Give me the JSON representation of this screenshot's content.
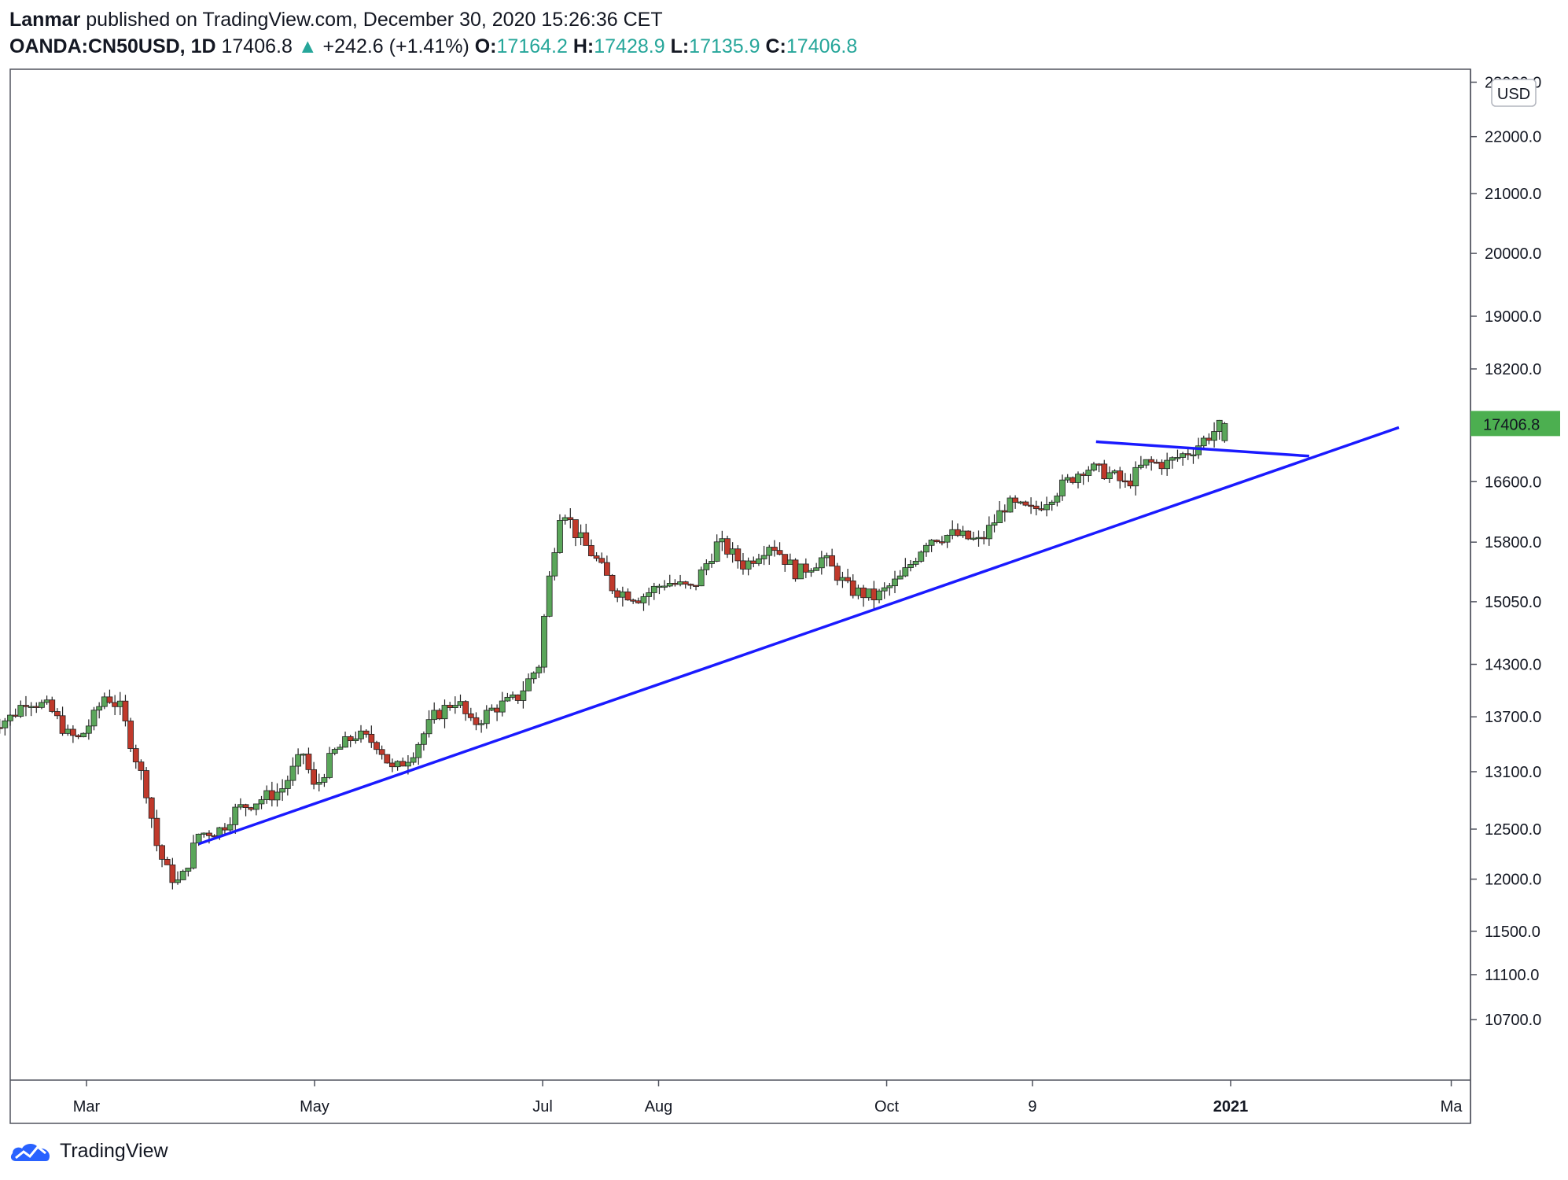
{
  "header": {
    "author": "Lanmar",
    "published_text": "published on TradingView.com, December 30, 2020 15:26:36 CET",
    "symbol": "OANDA:CN50USD, 1D",
    "last": "17406.8",
    "change": "+242.6 (+1.41%)",
    "o_label": "O:",
    "o_value": "17164.2",
    "h_label": "H:",
    "h_value": "17428.9",
    "l_label": "L:",
    "l_value": "17135.9",
    "c_label": "C:",
    "c_value": "17406.8"
  },
  "footer": {
    "brand": "TradingView"
  },
  "colors": {
    "up": "#26a69a",
    "candle_up": "#5aa65a",
    "candle_down": "#c0392b",
    "trendline": "#1a1aff",
    "price_tag": "#4caf50"
  },
  "chart_data": {
    "type": "candlestick",
    "currency": "USD",
    "y_ticks": [
      23000,
      22000,
      21000,
      20000,
      19000,
      18200,
      16600,
      15800,
      15050,
      14300,
      13700,
      13100,
      12500,
      12000,
      11500,
      11100,
      10700
    ],
    "y_tick_labels": [
      "23000.0",
      "22000.0",
      "21000.0",
      "20000.0",
      "19000.0",
      "18200.0",
      "16600.0",
      "15800.0",
      "15050.0",
      "14300.0",
      "13700.0",
      "13100.0",
      "12500.0",
      "12000.0",
      "11500.0",
      "11100.0",
      "10700.0"
    ],
    "last_price": 17406.8,
    "last_price_label": "17406.8",
    "x_labels": [
      "Mar",
      "May",
      "Jul",
      "Aug",
      "Oct",
      "9",
      "2021",
      "Ma"
    ],
    "x_label_dates": [
      "2020-03-01",
      "2020-05-01",
      "2020-07-01",
      "2020-08-01",
      "2020-10-01",
      "2020-11-09",
      "2021-01-01",
      "2021-03-01"
    ],
    "close_path": [
      [
        "2020-02-04",
        13600
      ],
      [
        "2020-02-10",
        13700
      ],
      [
        "2020-02-14",
        13900
      ],
      [
        "2020-02-20",
        13800
      ],
      [
        "2020-02-25",
        13500
      ],
      [
        "2020-02-28",
        13450
      ],
      [
        "2020-03-03",
        13700
      ],
      [
        "2020-03-06",
        13950
      ],
      [
        "2020-03-10",
        13800
      ],
      [
        "2020-03-13",
        13400
      ],
      [
        "2020-03-17",
        12900
      ],
      [
        "2020-03-20",
        12300
      ],
      [
        "2020-03-23",
        12050
      ],
      [
        "2020-03-26",
        11950
      ],
      [
        "2020-03-31",
        12450
      ],
      [
        "2020-04-06",
        12500
      ],
      [
        "2020-04-10",
        12700
      ],
      [
        "2020-04-16",
        12800
      ],
      [
        "2020-04-22",
        12900
      ],
      [
        "2020-04-28",
        13300
      ],
      [
        "2020-05-01",
        12900
      ],
      [
        "2020-05-06",
        13300
      ],
      [
        "2020-05-12",
        13500
      ],
      [
        "2020-05-18",
        13400
      ],
      [
        "2020-05-22",
        13100
      ],
      [
        "2020-05-27",
        13300
      ],
      [
        "2020-06-02",
        13700
      ],
      [
        "2020-06-08",
        13900
      ],
      [
        "2020-06-12",
        13600
      ],
      [
        "2020-06-18",
        13800
      ],
      [
        "2020-06-24",
        13900
      ],
      [
        "2020-06-30",
        14300
      ],
      [
        "2020-07-02",
        15100
      ],
      [
        "2020-07-06",
        16300
      ],
      [
        "2020-07-10",
        15900
      ],
      [
        "2020-07-15",
        15600
      ],
      [
        "2020-07-20",
        15200
      ],
      [
        "2020-07-27",
        15100
      ],
      [
        "2020-08-03",
        15300
      ],
      [
        "2020-08-10",
        15200
      ],
      [
        "2020-08-17",
        15800
      ],
      [
        "2020-08-24",
        15500
      ],
      [
        "2020-08-31",
        15800
      ],
      [
        "2020-09-07",
        15400
      ],
      [
        "2020-09-14",
        15600
      ],
      [
        "2020-09-21",
        15200
      ],
      [
        "2020-09-28",
        15100
      ],
      [
        "2020-10-05",
        15350
      ],
      [
        "2020-10-12",
        15850
      ],
      [
        "2020-10-19",
        15900
      ],
      [
        "2020-10-26",
        15800
      ],
      [
        "2020-11-02",
        16300
      ],
      [
        "2020-11-09",
        16200
      ],
      [
        "2020-11-16",
        16500
      ],
      [
        "2020-11-23",
        16800
      ],
      [
        "2020-11-30",
        16700
      ],
      [
        "2020-12-04",
        16550
      ],
      [
        "2020-12-09",
        16850
      ],
      [
        "2020-12-15",
        16850
      ],
      [
        "2020-12-22",
        17050
      ],
      [
        "2020-12-30",
        17406.8
      ]
    ],
    "trendlines": [
      {
        "from": [
          "2020-03-31",
          12350
        ],
        "to": [
          "2021-02-15",
          17350
        ]
      },
      {
        "from": [
          "2020-11-26",
          17150
        ],
        "to": [
          "2021-01-22",
          16950
        ]
      }
    ]
  }
}
